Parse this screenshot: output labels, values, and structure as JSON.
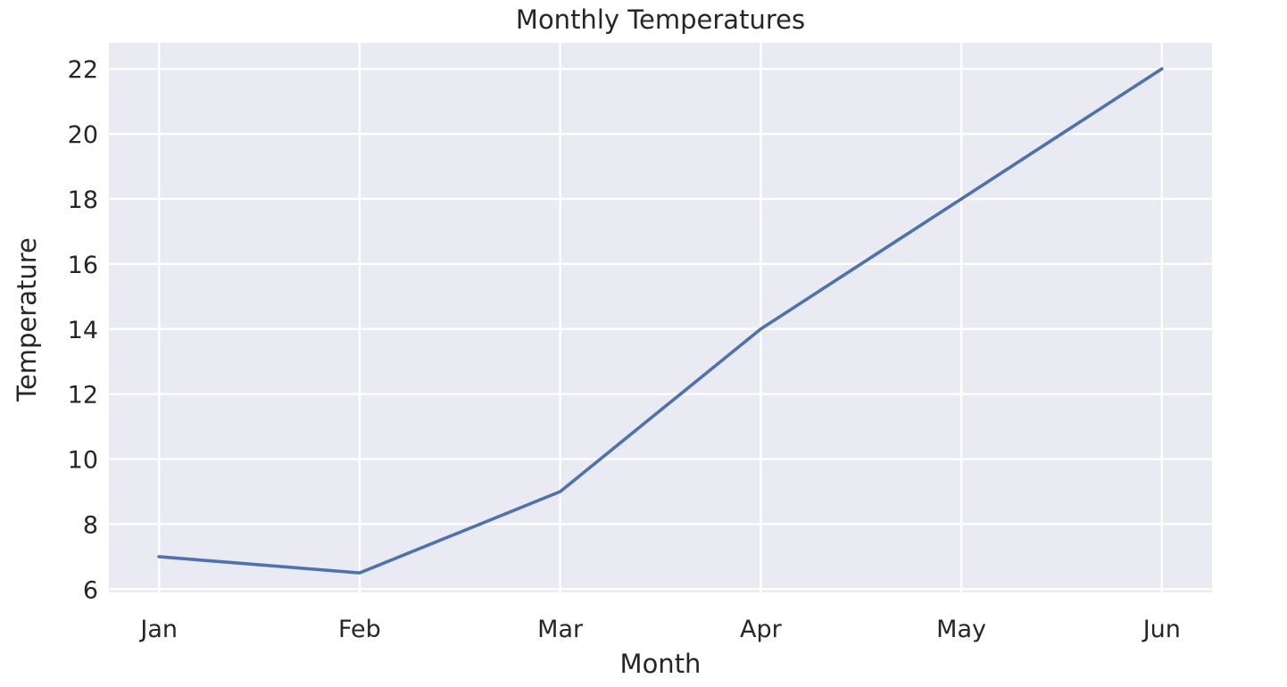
{
  "chart_data": {
    "type": "line",
    "title": "Monthly Temperatures",
    "xlabel": "Month",
    "ylabel": "Temperature",
    "categories": [
      "Jan",
      "Feb",
      "Mar",
      "Apr",
      "May",
      "Jun"
    ],
    "series": [
      {
        "values": [
          7,
          6.5,
          9,
          14,
          18,
          22
        ],
        "color": "#4c72b0"
      }
    ],
    "ylim": [
      5.9,
      22.8
    ],
    "yticks": [
      6,
      8,
      10,
      12,
      14,
      16,
      18,
      20,
      22
    ],
    "grid": true,
    "style": {
      "plot_background": "#eaeaf2",
      "grid_color": "#ffffff",
      "line_color": "#4c72b0"
    }
  }
}
